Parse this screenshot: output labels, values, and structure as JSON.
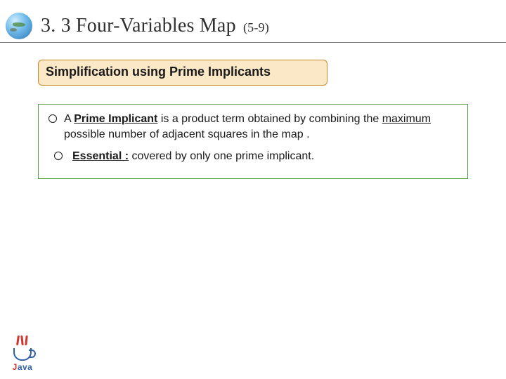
{
  "colors": {
    "title": "#303030",
    "body": "#1a1a1a",
    "hr": "#7a7a7a",
    "subhead_border": "#c98a2a",
    "subhead_fill": "#fbe8c7",
    "defs_border": "#5aa04a",
    "java_red": "#d1352b",
    "java_blue": "#3060a8",
    "background": "#ffffff"
  },
  "title": {
    "main": "3. 3 Four-Variables Map",
    "sub": "(5-9)"
  },
  "subhead": "Simplification using Prime Implicants",
  "defs": {
    "item1": {
      "t1": "A ",
      "t2": "Prime Implicant",
      "t3": " is a product term obtained by combining the ",
      "t4": "maximum",
      "t5": " possible number of adjacent squares in the map ."
    },
    "item2": {
      "t1": "Essential :",
      "t2": " covered by only one prime implicant."
    }
  },
  "logo": {
    "letter1": "J",
    "rest": "ava"
  }
}
